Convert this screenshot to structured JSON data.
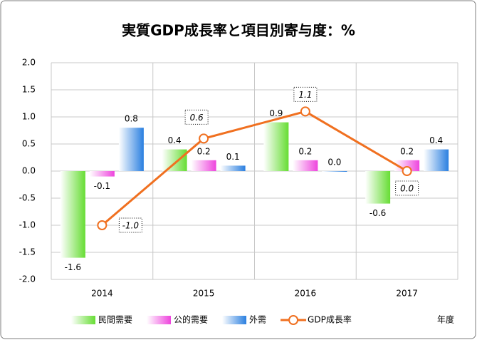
{
  "chart_data": {
    "type": "bar",
    "title": "実質GDP成長率と項目別寄与度：%",
    "x_label": "年度",
    "categories": [
      "2014",
      "2015",
      "2016",
      "2017"
    ],
    "series": [
      {
        "name": "民間需要",
        "color": "#66dd33",
        "values": [
          -1.6,
          0.4,
          0.9,
          -0.6
        ],
        "value_labels": [
          "-1.6",
          "0.4",
          "0.9",
          "-0.6"
        ]
      },
      {
        "name": "公的需要",
        "color": "#ee44dd",
        "values": [
          -0.1,
          0.2,
          0.2,
          0.2
        ],
        "value_labels": [
          "-0.1",
          "0.2",
          "0.2",
          "0.2"
        ]
      },
      {
        "name": "外需",
        "color": "#2a7fe0",
        "values": [
          0.8,
          0.1,
          0.0,
          0.4
        ],
        "value_labels": [
          "0.8",
          "0.1",
          "0.0",
          "0.4"
        ]
      },
      {
        "name": "GDP成長率",
        "type": "line",
        "color": "#f07020",
        "values": [
          -1.0,
          0.6,
          1.1,
          0.0
        ],
        "value_labels": [
          "-1.0",
          "0.6",
          "1.1",
          "0.0"
        ]
      }
    ],
    "ylim": [
      -2,
      2
    ],
    "yticks": [
      {
        "value": -2,
        "label": "-2.0"
      },
      -1.5,
      {
        "value": -1,
        "label": "-1.0"
      },
      -0.5,
      {
        "value": 0,
        "label": "0.0"
      },
      0.5,
      {
        "value": 1,
        "label": "1.0"
      },
      1.5,
      {
        "value": 2,
        "label": "2.0"
      }
    ],
    "grid": true,
    "legend": "bottom"
  }
}
